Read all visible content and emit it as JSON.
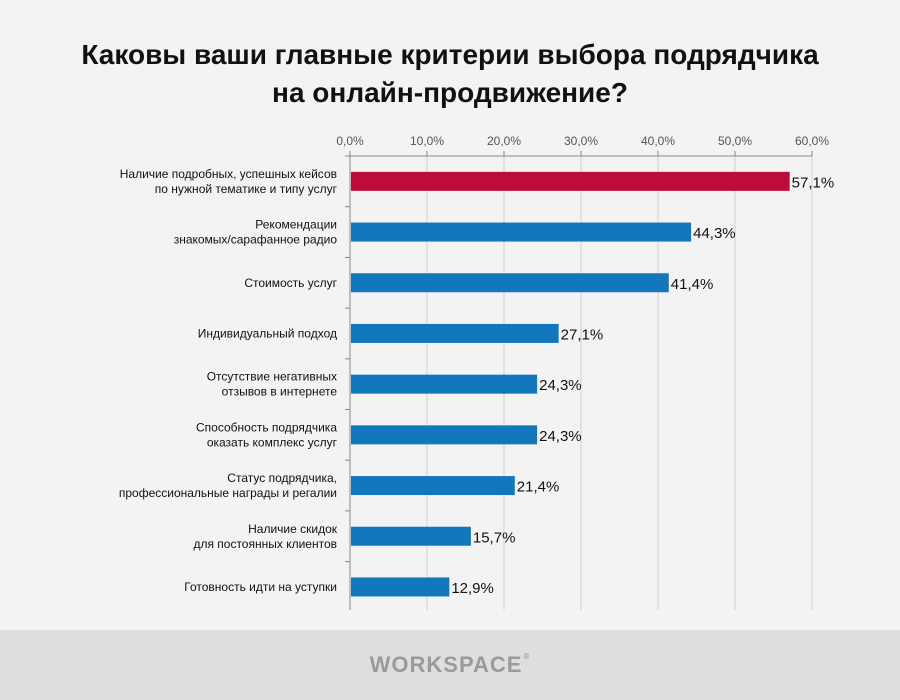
{
  "title_lines": [
    "Каковы ваши главные критерии выбора подрядчика",
    "на онлайн-продвижение?"
  ],
  "footer": {
    "logo_text_before": "W",
    "logo_text_o": "O",
    "logo_text_after": "RKSPACE",
    "logo_mark": "®"
  },
  "colors": {
    "highlight_bar": "#bb0c3b",
    "default_bar": "#1277bd",
    "axis": "#888888",
    "grid": "#d0d0d0",
    "tick_label": "#555555",
    "category_label": "#111111",
    "value_label": "#111111"
  },
  "chart_data": {
    "type": "bar",
    "orientation": "horizontal",
    "title": "Каковы ваши главные критерии выбора подрядчика на онлайн-продвижение?",
    "xlim": [
      0,
      60
    ],
    "x_ticks": [
      0,
      10,
      20,
      30,
      40,
      50,
      60
    ],
    "x_tick_labels": [
      "0,0%",
      "10,0%",
      "20,0%",
      "30,0%",
      "40,0%",
      "50,0%",
      "60,0%"
    ],
    "x_axis_position": "top",
    "grid": true,
    "categories": [
      [
        "Наличие  подробных,  успешных кейсов",
        "по нужной тематике  и типу  услуг"
      ],
      [
        "Рекомендации",
        "знакомых/сарафанное  радио"
      ],
      [
        "Стоимость  услуг"
      ],
      [
        "Индивидуальный  подход"
      ],
      [
        "Отсутствие  негативных",
        "отзывов  в интернете"
      ],
      [
        "Способность  подрядчика",
        "оказать  комплекс  услуг"
      ],
      [
        "Статус  подрядчика,",
        "профессиональные  награды и регалии"
      ],
      [
        "Наличие  скидок",
        "для постоянных  клиентов"
      ],
      [
        "Готовность  идти  на уступки"
      ]
    ],
    "values": [
      57.1,
      44.3,
      41.4,
      27.1,
      24.3,
      24.3,
      21.4,
      15.7,
      12.9
    ],
    "value_labels": [
      "57,1%",
      "44,3%",
      "41,4%",
      "27,1%",
      "24,3%",
      "24,3%",
      "21,4%",
      "15,7%",
      "12,9%"
    ],
    "highlight_index": 0
  }
}
